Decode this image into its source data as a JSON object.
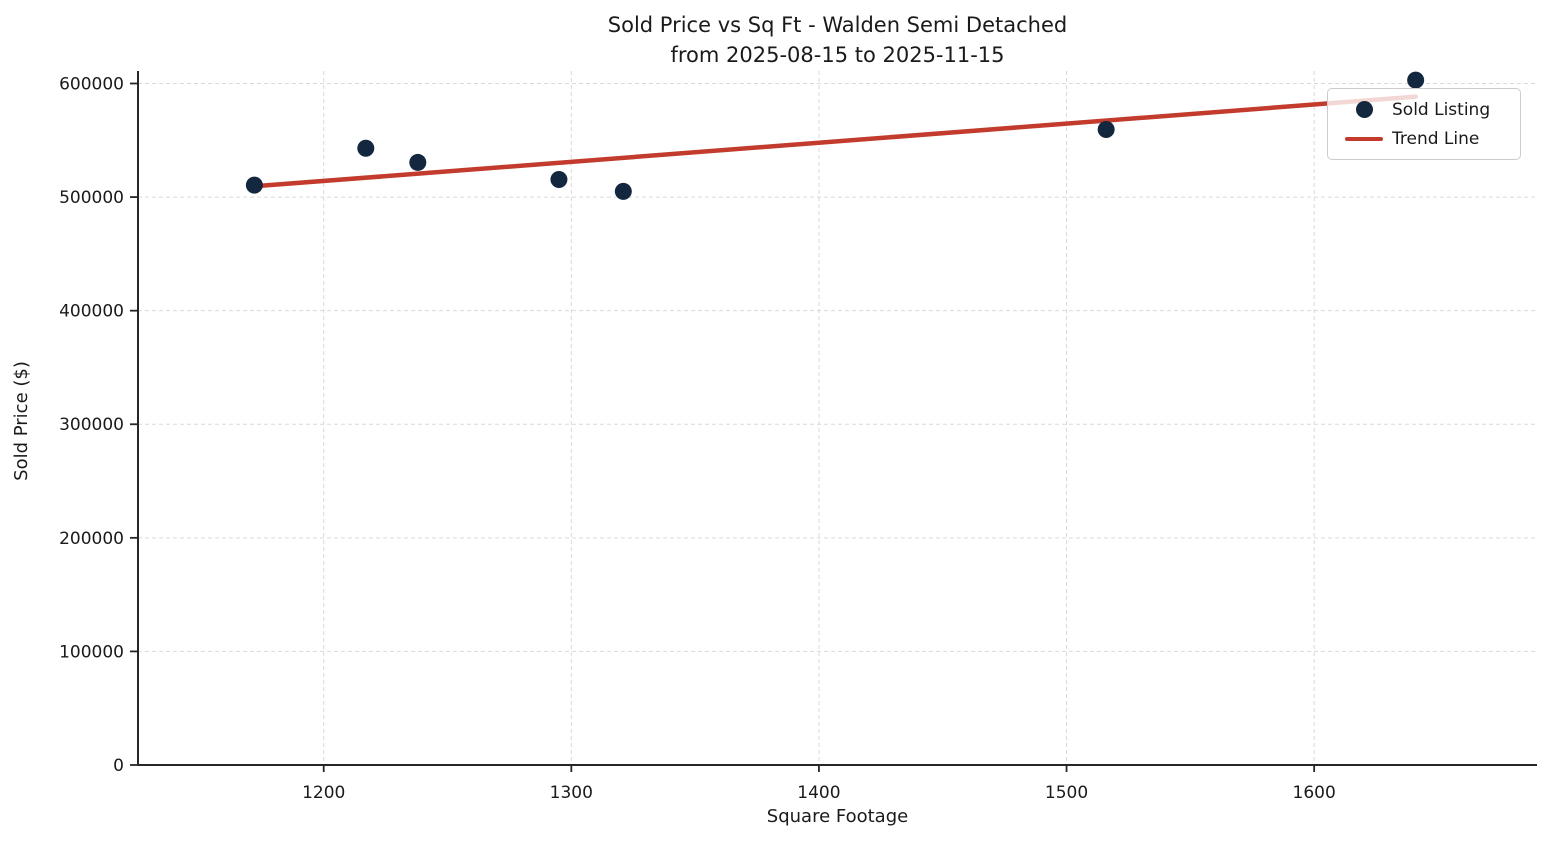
{
  "chart_data": {
    "type": "scatter",
    "title": "Sold Price vs Sq Ft - Walden Semi Detached",
    "subtitle": "from 2025-08-15 to 2025-11-15",
    "xlabel": "Square Footage",
    "ylabel": "Sold Price ($)",
    "xlim": [
      1125,
      1690
    ],
    "ylim": [
      0,
      611000
    ],
    "x_ticks": [
      1200,
      1300,
      1400,
      1500,
      1600
    ],
    "y_ticks": [
      0,
      100000,
      200000,
      300000,
      400000,
      500000,
      600000
    ],
    "grid": true,
    "grid_style": "dashed",
    "legend_position": "upper right",
    "colors": {
      "point": "#13273f",
      "trend": "#c23b2c",
      "grid": "#d9d9d9",
      "axis": "#262626",
      "text": "#1a1a1a",
      "legend_border": "#cccccc"
    },
    "series": [
      {
        "name": "Sold Listing",
        "kind": "scatter",
        "marker": "circle",
        "color": "#13273f",
        "points": [
          {
            "sqft": 1172,
            "price": 510500
          },
          {
            "sqft": 1217,
            "price": 543000
          },
          {
            "sqft": 1238,
            "price": 530500
          },
          {
            "sqft": 1295,
            "price": 515500
          },
          {
            "sqft": 1321,
            "price": 505000
          },
          {
            "sqft": 1516,
            "price": 559500
          },
          {
            "sqft": 1641,
            "price": 603000
          }
        ]
      },
      {
        "name": "Trend Line",
        "kind": "line",
        "color": "#c23b2c",
        "points": [
          {
            "sqft": 1172,
            "price": 509500
          },
          {
            "sqft": 1641,
            "price": 588400
          }
        ]
      }
    ]
  }
}
